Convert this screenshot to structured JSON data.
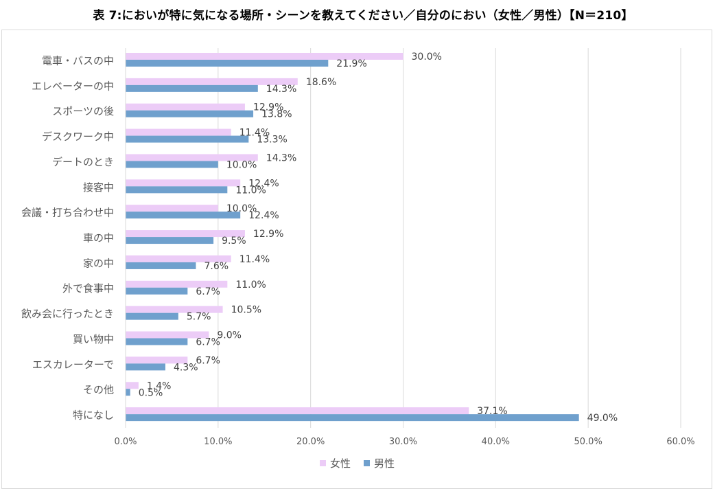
{
  "title": "表 7:においが特に気になる場所・シーンを教えてください／自分のにおい（女性／男性）【N＝210】",
  "chart_data": {
    "type": "bar",
    "orientation": "horizontal",
    "categories": [
      "電車・バスの中",
      "エレベーターの中",
      "スポーツの後",
      "デスクワーク中",
      "デートのとき",
      "接客中",
      "会議・打ち合わせ中",
      "車の中",
      "家の中",
      "外で食事中",
      "飲み会に行ったとき",
      "買い物中",
      "エスカレーターで",
      "その他",
      "特になし"
    ],
    "series": [
      {
        "name": "女性",
        "color": "#ecccf7",
        "values": [
          30.0,
          18.6,
          12.9,
          11.4,
          14.3,
          12.4,
          10.0,
          12.9,
          11.4,
          11.0,
          10.5,
          9.0,
          6.7,
          1.4,
          37.1
        ]
      },
      {
        "name": "男性",
        "color": "#6fa0cd",
        "values": [
          21.9,
          14.3,
          13.8,
          13.3,
          10.0,
          11.0,
          12.4,
          9.5,
          7.6,
          6.7,
          5.7,
          6.7,
          4.3,
          0.5,
          49.0
        ]
      }
    ],
    "xlim": [
      0,
      60
    ],
    "xticks": [
      "0.0%",
      "10.0%",
      "20.0%",
      "30.0%",
      "40.0%",
      "50.0%",
      "60.0%"
    ],
    "value_suffix": "%",
    "grid": true,
    "legend_position": "bottom"
  }
}
